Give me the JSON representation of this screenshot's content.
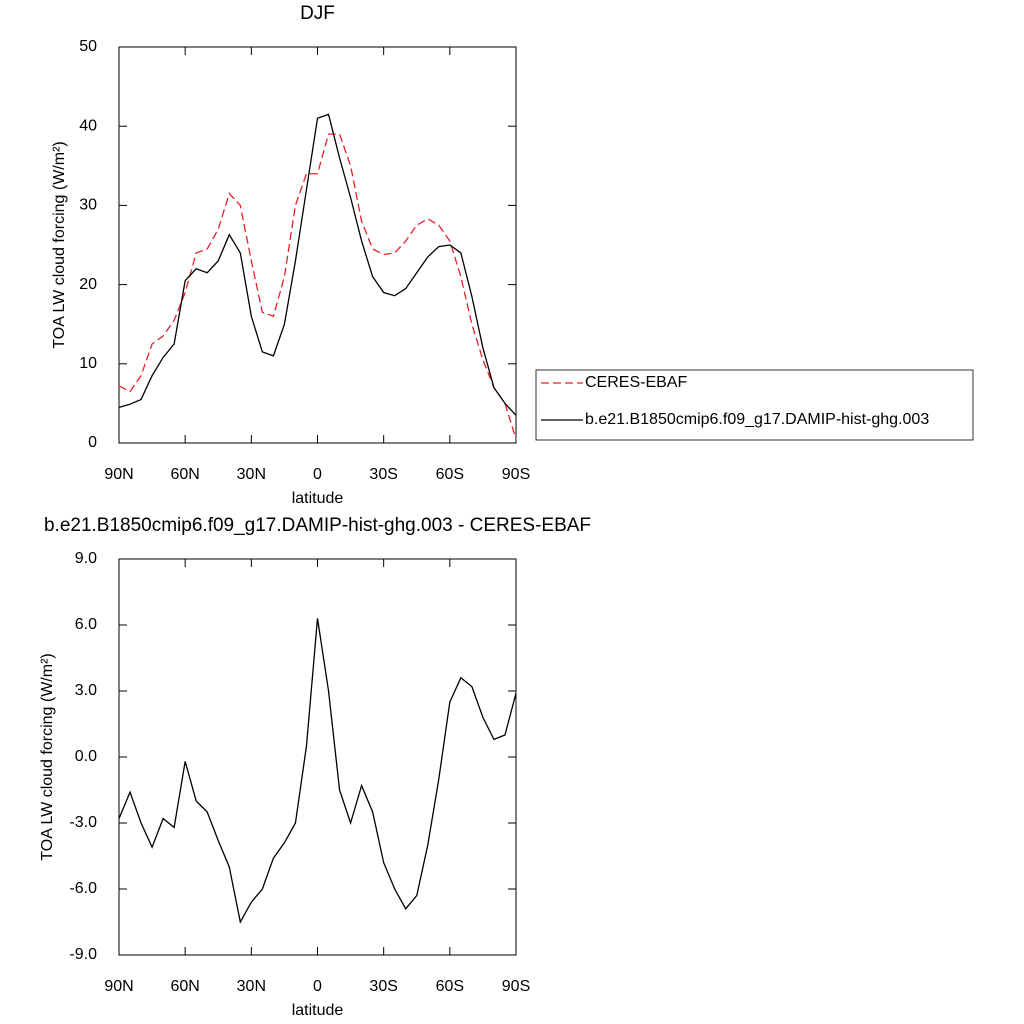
{
  "chart_data": [
    {
      "type": "line",
      "title": "DJF",
      "xlabel": "latitude",
      "ylabel": "TOA LW cloud forcing (W/m²)",
      "x": [
        90,
        85,
        80,
        75,
        70,
        65,
        60,
        55,
        50,
        45,
        40,
        35,
        30,
        25,
        20,
        15,
        10,
        5,
        0,
        -5,
        -10,
        -15,
        -20,
        -25,
        -30,
        -35,
        -40,
        -45,
        -50,
        -55,
        -60,
        -65,
        -70,
        -75,
        -80,
        -85,
        -90
      ],
      "xlim": [
        90,
        -90
      ],
      "xticks": [
        {
          "value": 90,
          "label": "90N"
        },
        {
          "value": 60,
          "label": "60N"
        },
        {
          "value": 30,
          "label": "30N"
        },
        0,
        {
          "value": -30,
          "label": "30S"
        },
        {
          "value": -60,
          "label": "60S"
        },
        {
          "value": -90,
          "label": "90S"
        }
      ],
      "ylim": [
        0,
        50
      ],
      "yticks": [
        0,
        10,
        20,
        30,
        40,
        50
      ],
      "legend": "right",
      "series": [
        {
          "name": "CERES-EBAF",
          "color": "#e8202a",
          "linestyle": "dashed",
          "values": [
            7.2,
            6.5,
            8.5,
            12.5,
            13.5,
            15.5,
            19,
            24,
            24.5,
            27,
            31.5,
            30,
            23,
            16.5,
            16,
            21,
            30,
            34,
            34,
            39,
            39,
            35,
            28,
            24.5,
            23.8,
            24,
            25.5,
            27.5,
            28.3,
            27.5,
            25.5,
            21,
            15,
            10.5,
            7,
            5,
            0.5
          ]
        },
        {
          "name": "b.e21.B1850cmip6.f09_g17.DAMIP-hist-ghg.003",
          "color": "#000000",
          "linestyle": "solid",
          "values": [
            4.5,
            4.9,
            5.5,
            8.5,
            10.8,
            12.5,
            20.5,
            22,
            21.5,
            23,
            26.3,
            24,
            16,
            11.5,
            11,
            15,
            23,
            32,
            41,
            41.5,
            36,
            31,
            25.5,
            21,
            19,
            18.6,
            19.5,
            21.5,
            23.5,
            24.8,
            25,
            24,
            18.5,
            12,
            7,
            5,
            3.5
          ]
        }
      ]
    },
    {
      "type": "line",
      "title": "b.e21.B1850cmip6.f09_g17.DAMIP-hist-ghg.003 - CERES-EBAF",
      "xlabel": "latitude",
      "ylabel": "TOA LW cloud forcing (W/m²)",
      "x": [
        90,
        85,
        80,
        75,
        70,
        65,
        60,
        55,
        50,
        45,
        40,
        35,
        30,
        25,
        20,
        15,
        10,
        5,
        0,
        -5,
        -10,
        -15,
        -20,
        -25,
        -30,
        -35,
        -40,
        -45,
        -50,
        -55,
        -60,
        -65,
        -70,
        -75,
        -80,
        -85,
        -90
      ],
      "xlim": [
        90,
        -90
      ],
      "xticks": [
        {
          "value": 90,
          "label": "90N"
        },
        {
          "value": 60,
          "label": "60N"
        },
        {
          "value": 30,
          "label": "30N"
        },
        0,
        {
          "value": -30,
          "label": "30S"
        },
        {
          "value": -60,
          "label": "60S"
        },
        {
          "value": -90,
          "label": "90S"
        }
      ],
      "ylim": [
        -9,
        9
      ],
      "yticks": [
        {
          "value": -9,
          "label": "-9.0"
        },
        {
          "value": -6,
          "label": "-6.0"
        },
        {
          "value": -3,
          "label": "-3.0"
        },
        {
          "value": 0,
          "label": "0.0"
        },
        {
          "value": 3,
          "label": "3.0"
        },
        {
          "value": 6,
          "label": "6.0"
        },
        {
          "value": 9,
          "label": "9.0"
        }
      ],
      "series": [
        {
          "color": "#000000",
          "linestyle": "solid",
          "values": [
            -2.8,
            -1.6,
            -3.0,
            -4.1,
            -2.8,
            -3.2,
            -0.2,
            -2.0,
            -2.5,
            -3.8,
            -5.0,
            -7.5,
            -6.6,
            -6.0,
            -4.6,
            -3.9,
            -3.0,
            0.5,
            6.3,
            3.0,
            -1.5,
            -3.0,
            -1.3,
            -2.5,
            -4.8,
            -6.0,
            -6.9,
            -6.3,
            -4.0,
            -1.0,
            2.5,
            3.6,
            3.2,
            1.8,
            0.8,
            1.0,
            2.9
          ]
        }
      ]
    }
  ]
}
